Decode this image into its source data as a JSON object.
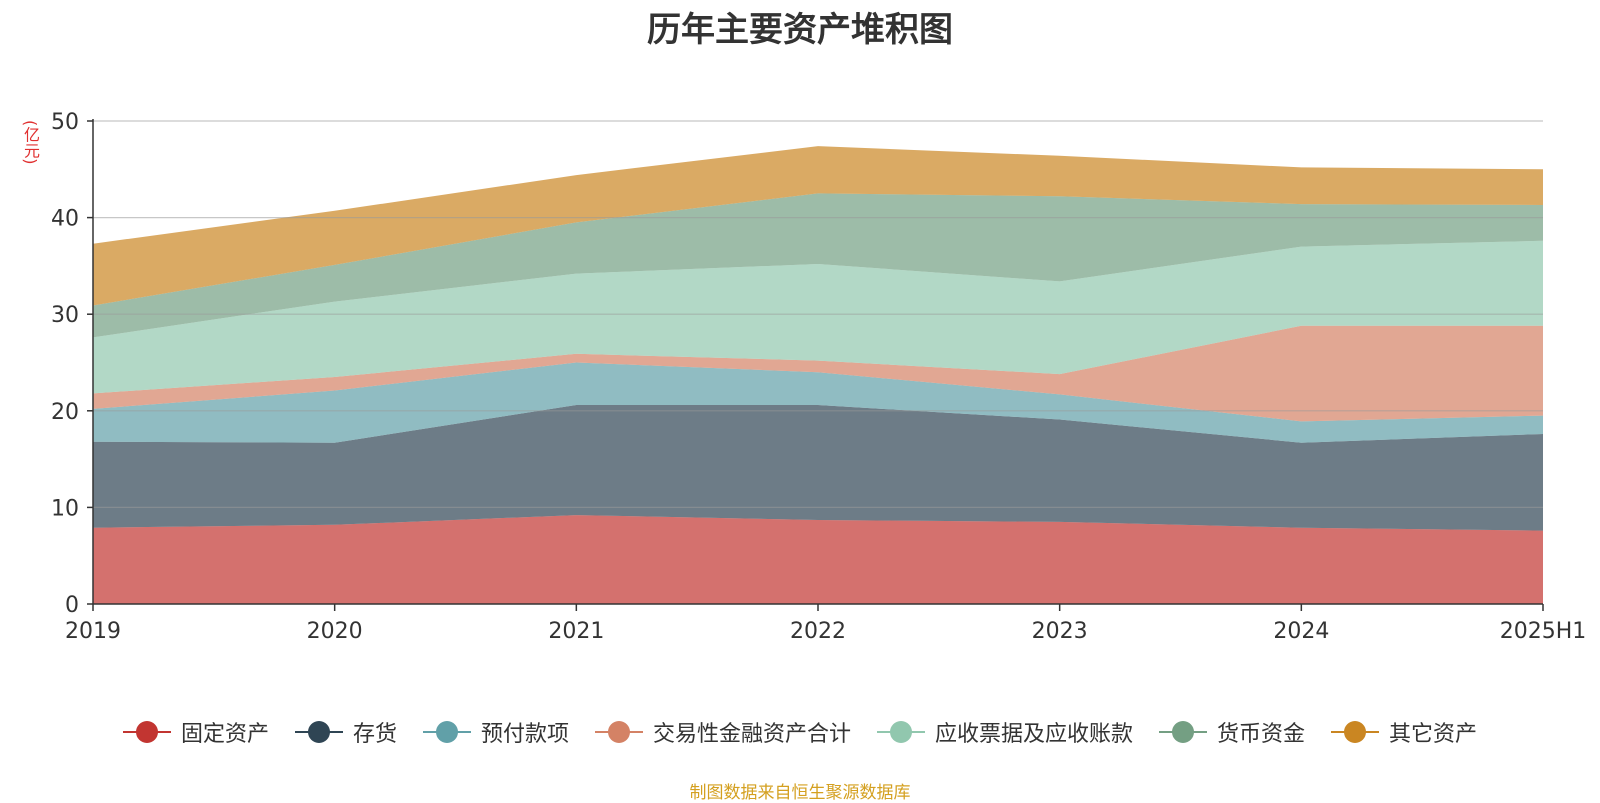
{
  "chart_data": {
    "type": "area",
    "stacked": true,
    "title": "历年主要资产堆积图",
    "unit_label": "(亿元)",
    "categories": [
      "2019",
      "2020",
      "2021",
      "2022",
      "2023",
      "2024",
      "2025H1"
    ],
    "ylim": [
      0,
      50
    ],
    "y_ticks": [
      0,
      10,
      20,
      30,
      40,
      50
    ],
    "grid": true,
    "legend_position": "bottom",
    "series": [
      {
        "name": "固定资产",
        "color": "#c23531",
        "values": [
          7.9,
          8.2,
          9.2,
          8.7,
          8.5,
          7.9,
          7.6
        ]
      },
      {
        "name": "存货",
        "color": "#2f4554",
        "values": [
          8.9,
          8.5,
          11.4,
          11.9,
          10.6,
          8.8,
          10.0
        ]
      },
      {
        "name": "预付款项",
        "color": "#61a0a8",
        "values": [
          3.4,
          5.4,
          4.4,
          3.4,
          2.6,
          2.2,
          1.9
        ]
      },
      {
        "name": "交易性金融资产合计",
        "color": "#d48265",
        "values": [
          1.6,
          1.4,
          0.9,
          1.2,
          2.1,
          9.9,
          9.3
        ]
      },
      {
        "name": "应收票据及应收账款",
        "color": "#91c7ae",
        "values": [
          5.8,
          7.8,
          8.3,
          10.0,
          9.6,
          8.2,
          8.8
        ]
      },
      {
        "name": "货币资金",
        "color": "#749f83",
        "values": [
          3.3,
          3.8,
          5.3,
          7.3,
          8.8,
          4.4,
          3.7
        ]
      },
      {
        "name": "其它资产",
        "color": "#ca8622",
        "values": [
          6.4,
          5.6,
          4.9,
          4.9,
          4.2,
          3.8,
          3.7
        ]
      }
    ]
  },
  "source_note": "制图数据来自恒生聚源数据库"
}
